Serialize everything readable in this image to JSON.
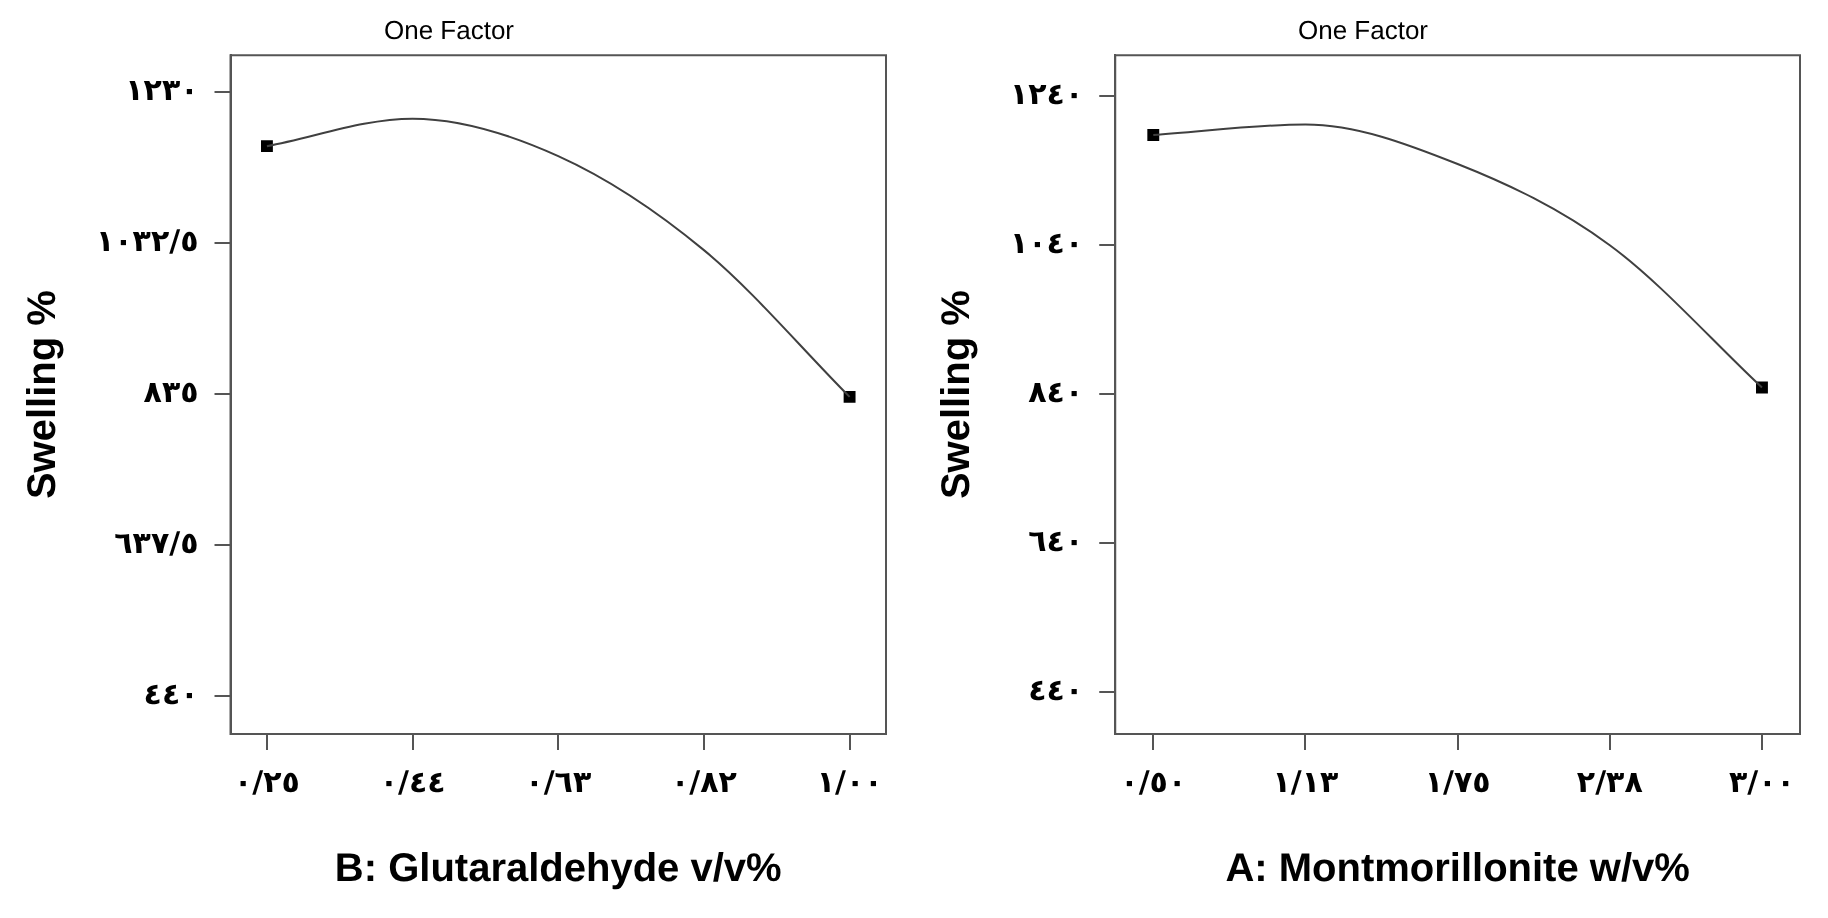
{
  "chart_data": [
    {
      "type": "line",
      "title": "One Factor",
      "xlabel": "B: Glutaraldehyde v/v%",
      "ylabel": "Swelling %",
      "ylim": [
        390,
        1278
      ],
      "categories": [
        "٠/٢٥",
        "٠/٤٤",
        "٠/٦٣",
        "٠/٨٢",
        "١/٠٠"
      ],
      "yticks": [
        {
          "value": 440,
          "label": "٤٤٠"
        },
        {
          "value": 637.5,
          "label": "٦٣٧/٥"
        },
        {
          "value": 835,
          "label": "٨٣٥"
        },
        {
          "value": 1032.5,
          "label": "١٠٣٢/٥"
        },
        {
          "value": 1230,
          "label": "١٢٣٠"
        }
      ],
      "grid": false,
      "legend": false,
      "series": [
        {
          "type": "line",
          "color": "#404040",
          "marker": "none",
          "values": [
            1159,
            1195,
            1146,
            1023,
            831
          ]
        },
        {
          "type": "scatter",
          "color": "#000000",
          "marker": "square",
          "values": [
            1159,
            null,
            null,
            null,
            831
          ]
        }
      ]
    },
    {
      "type": "line",
      "title": "One Factor",
      "xlabel": "A: Montmorillonite w/v%",
      "ylabel": "Swelling %",
      "ylim": [
        384,
        1295
      ],
      "categories": [
        "٠/٥٠",
        "١/١٣",
        "١/٧٥",
        "٢/٣٨",
        "٣/٠٠"
      ],
      "yticks": [
        {
          "value": 440,
          "label": "٤٤٠"
        },
        {
          "value": 640,
          "label": "٦٤٠"
        },
        {
          "value": 840,
          "label": "٨٤٠"
        },
        {
          "value": 1040,
          "label": "١٠٤٠"
        },
        {
          "value": 1240,
          "label": "١٢٤٠"
        }
      ],
      "grid": false,
      "legend": false,
      "series": [
        {
          "type": "line",
          "color": "#404040",
          "marker": "none",
          "values": [
            1188,
            1202,
            1149,
            1040,
            849
          ]
        },
        {
          "type": "scatter",
          "color": "#000000",
          "marker": "square",
          "values": [
            1188,
            null,
            null,
            null,
            849
          ]
        }
      ]
    }
  ]
}
